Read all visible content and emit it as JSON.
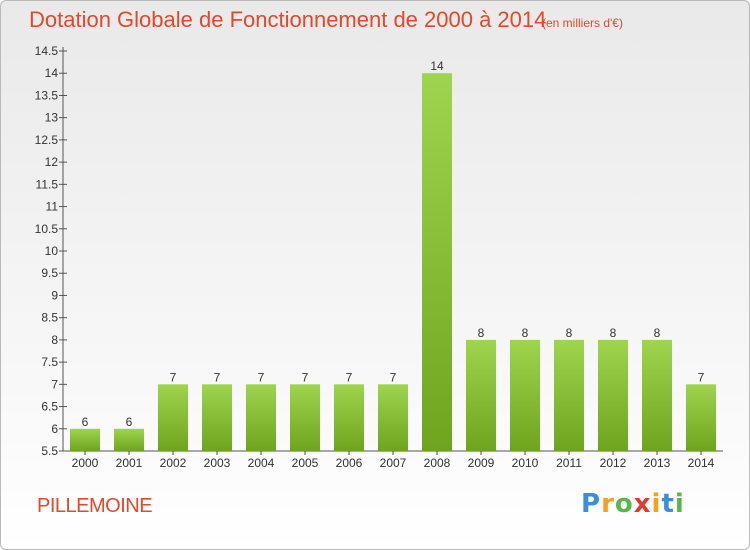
{
  "chart_data": {
    "type": "bar",
    "title": "Dotation Globale de Fonctionnement de 2000 à 2014",
    "subtitle": "(en milliers d'€)",
    "categories": [
      "2000",
      "2001",
      "2002",
      "2003",
      "2004",
      "2005",
      "2006",
      "2007",
      "2008",
      "2009",
      "2010",
      "2011",
      "2012",
      "2013",
      "2014"
    ],
    "values": [
      6,
      6,
      7,
      7,
      7,
      7,
      7,
      7,
      14,
      8,
      8,
      8,
      8,
      8,
      7
    ],
    "data_labels": [
      "6",
      "6",
      "7",
      "7",
      "7",
      "7",
      "7",
      "7",
      "14",
      "8",
      "8",
      "8",
      "8",
      "8",
      "7"
    ],
    "ylim": [
      5.5,
      14.5
    ],
    "yticks": [
      5.5,
      6,
      6.5,
      7,
      7.5,
      8,
      8.5,
      9,
      9.5,
      10,
      10.5,
      11,
      11.5,
      12,
      12.5,
      13,
      13.5,
      14,
      14.5
    ],
    "ytick_labels": [
      "5.5",
      "6",
      "6.5",
      "7",
      "7.5",
      "8",
      "8.5",
      "9",
      "9.5",
      "10",
      "10.5",
      "11",
      "11.5",
      "12",
      "12.5",
      "13",
      "13.5",
      "14",
      "14.5"
    ],
    "xlabel": "",
    "ylabel": "",
    "grid": false,
    "bar_color": "#8cc63f"
  },
  "commune": "PILLEMOINE",
  "logo": {
    "letters": [
      "P",
      "r",
      "o",
      "x",
      "i",
      "t",
      "i"
    ],
    "colors": [
      "#3a8fd8",
      "#f4a21e",
      "#5bb64a",
      "#e23a2c",
      "#f4a21e",
      "#3a8fd8",
      "#5bb64a"
    ]
  }
}
